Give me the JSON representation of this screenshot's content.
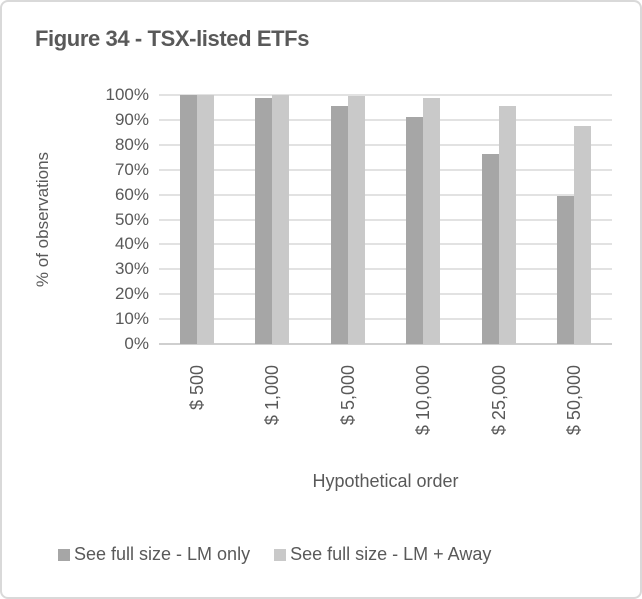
{
  "figure": {
    "title": "Figure 34 - TSX-listed ETFs"
  },
  "chart_data": {
    "type": "bar",
    "title": "Figure 34 - TSX-listed ETFs",
    "categories": [
      "$ 500",
      "$ 1,000",
      "$ 5,000",
      "$ 10,000",
      "$ 25,000",
      "$ 50,000"
    ],
    "series": [
      {
        "name": "See full size - LM only",
        "color": "#a6a6a6",
        "values": [
          100,
          99,
          95.5,
          91,
          76.5,
          59.5
        ]
      },
      {
        "name": "See full size - LM + Away",
        "color": "#c9c9c9",
        "values": [
          100,
          100,
          99.5,
          99,
          95.5,
          87.5
        ]
      }
    ],
    "xlabel": "Hypothetical order",
    "ylabel": "% of observations",
    "ylim": [
      0,
      100
    ],
    "ytick_step": 10,
    "ytick_labels": [
      "0%",
      "10%",
      "20%",
      "30%",
      "40%",
      "50%",
      "60%",
      "70%",
      "80%",
      "90%",
      "100%"
    ],
    "grid": true,
    "legend_position": "bottom",
    "colors": {
      "text": "#595959",
      "gridline": "#e2e2e2",
      "axis_line": "#cfcfcf",
      "figure_border": "#d9d9d9"
    }
  }
}
